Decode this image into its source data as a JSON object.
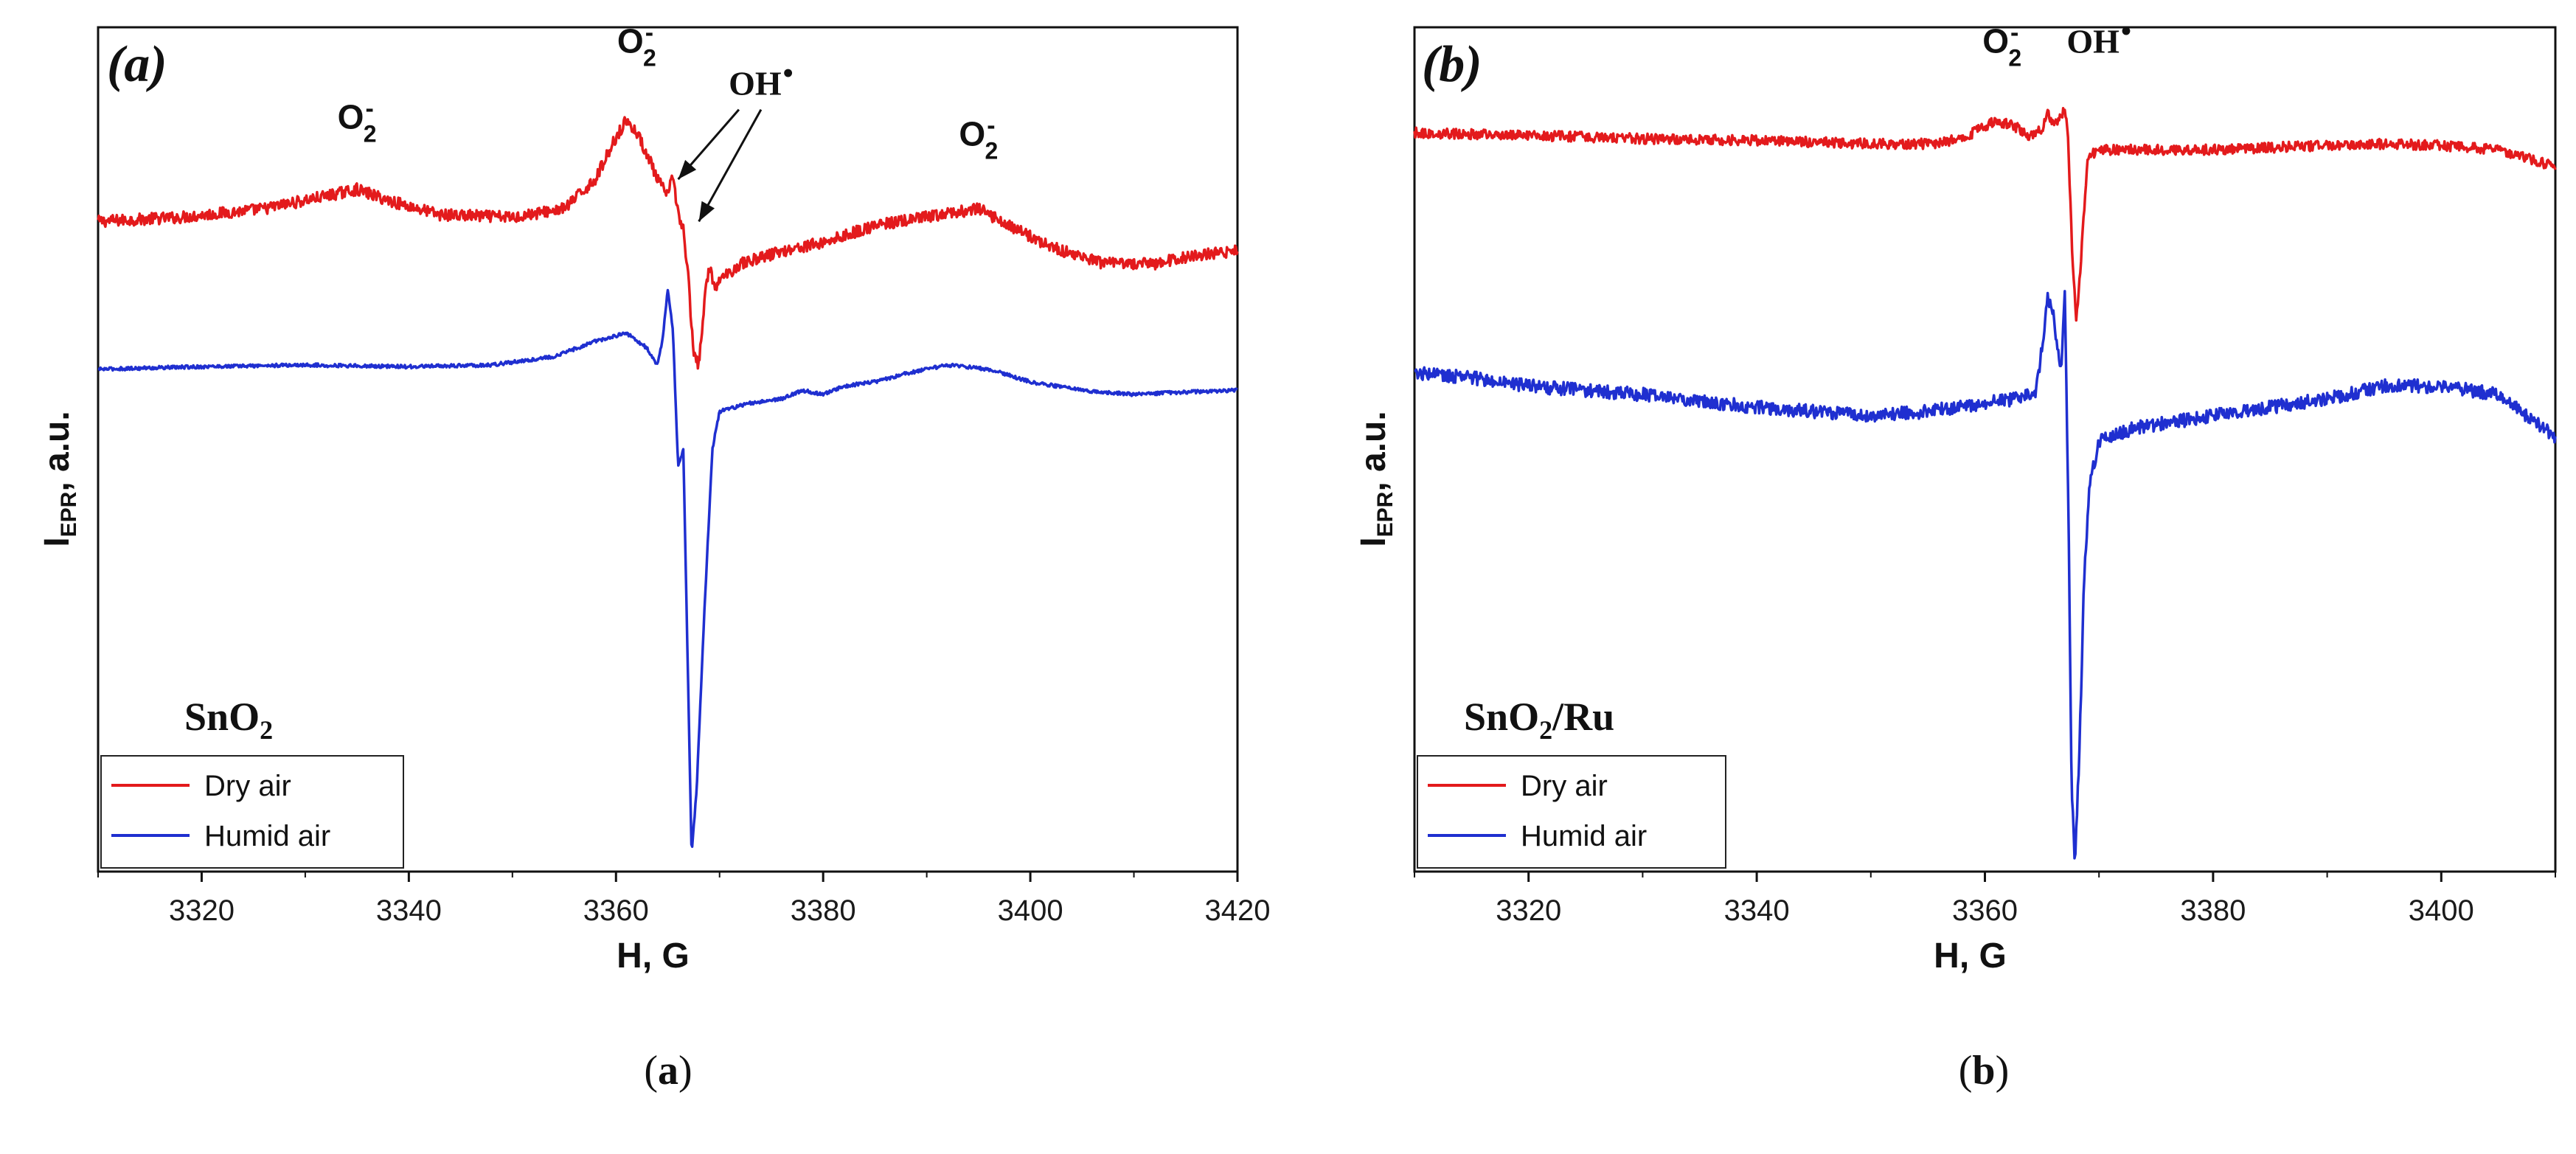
{
  "chart_data": [
    {
      "type": "line",
      "panel": "(a)",
      "caption": "a",
      "sample": "SnO2",
      "sample_parts": [
        "SnO",
        "2"
      ],
      "xlabel": "H, G",
      "ylabel": "I_EPR, a.u.",
      "ylabel_parts": [
        "I",
        "EPR",
        ", a.u."
      ],
      "xlim": [
        3310,
        3420
      ],
      "ylim": [
        0,
        1
      ],
      "xticks": [
        3320,
        3340,
        3360,
        3380,
        3400,
        3420
      ],
      "legend": [
        "Dry air",
        "Humid air"
      ],
      "legend_position": "bottom-left",
      "series": [
        {
          "name": "Dry air",
          "color": "#e31a1c",
          "noise": 0.007,
          "points": [
            [
              3310,
              0.77
            ],
            [
              3318,
              0.775
            ],
            [
              3326,
              0.785
            ],
            [
              3332,
              0.8
            ],
            [
              3335,
              0.808
            ],
            [
              3338,
              0.795
            ],
            [
              3343,
              0.778
            ],
            [
              3350,
              0.775
            ],
            [
              3355,
              0.785
            ],
            [
              3358,
              0.82
            ],
            [
              3360,
              0.87
            ],
            [
              3361,
              0.89
            ],
            [
              3362,
              0.875
            ],
            [
              3363,
              0.85
            ],
            [
              3364,
              0.82
            ],
            [
              3365,
              0.8
            ],
            [
              3365.5,
              0.825
            ],
            [
              3366,
              0.78
            ],
            [
              3366.5,
              0.76
            ],
            [
              3367,
              0.7
            ],
            [
              3367.5,
              0.61
            ],
            [
              3368,
              0.6
            ],
            [
              3368.5,
              0.67
            ],
            [
              3369,
              0.72
            ],
            [
              3369.5,
              0.69
            ],
            [
              3370,
              0.7
            ],
            [
              3372,
              0.72
            ],
            [
              3376,
              0.735
            ],
            [
              3380,
              0.745
            ],
            [
              3385,
              0.765
            ],
            [
              3390,
              0.775
            ],
            [
              3395,
              0.785
            ],
            [
              3398,
              0.765
            ],
            [
              3402,
              0.74
            ],
            [
              3407,
              0.72
            ],
            [
              3412,
              0.72
            ],
            [
              3416,
              0.73
            ],
            [
              3420,
              0.735
            ]
          ]
        },
        {
          "name": "Humid air",
          "color": "#1f2fd0",
          "noise": 0.002,
          "points": [
            [
              3310,
              0.595
            ],
            [
              3320,
              0.598
            ],
            [
              3330,
              0.6
            ],
            [
              3340,
              0.598
            ],
            [
              3348,
              0.6
            ],
            [
              3354,
              0.61
            ],
            [
              3358,
              0.628
            ],
            [
              3361,
              0.638
            ],
            [
              3363,
              0.62
            ],
            [
              3364,
              0.6
            ],
            [
              3364.5,
              0.63
            ],
            [
              3365,
              0.69
            ],
            [
              3365.5,
              0.64
            ],
            [
              3366,
              0.48
            ],
            [
              3366.5,
              0.5
            ],
            [
              3367,
              0.2
            ],
            [
              3367.3,
              0.02
            ],
            [
              3367.8,
              0.1
            ],
            [
              3368.5,
              0.3
            ],
            [
              3369.3,
              0.5
            ],
            [
              3370,
              0.545
            ],
            [
              3373,
              0.555
            ],
            [
              3376,
              0.56
            ],
            [
              3378,
              0.57
            ],
            [
              3380,
              0.565
            ],
            [
              3382,
              0.575
            ],
            [
              3385,
              0.58
            ],
            [
              3388,
              0.59
            ],
            [
              3392,
              0.6
            ],
            [
              3396,
              0.595
            ],
            [
              3400,
              0.58
            ],
            [
              3405,
              0.57
            ],
            [
              3410,
              0.565
            ],
            [
              3415,
              0.568
            ],
            [
              3420,
              0.57
            ]
          ]
        }
      ],
      "annotations": [
        {
          "main": "O",
          "sub": "2",
          "sup": "-",
          "x": 3335,
          "y": 0.88
        },
        {
          "main": "O",
          "sub": "2",
          "sup": "-",
          "x": 3362,
          "y": 0.97
        },
        {
          "main": "O",
          "sub": "2",
          "sup": "-",
          "x": 3395,
          "y": 0.86
        },
        {
          "main": "OH",
          "sup": "•",
          "x": 3374,
          "y": 0.92,
          "arrow_to": [
            [
              3366,
              0.82
            ],
            [
              3368,
              0.77
            ]
          ]
        }
      ]
    },
    {
      "type": "line",
      "panel": "(b)",
      "caption": "b",
      "sample": "SnO2/Ru",
      "sample_parts": [
        "SnO",
        "2",
        "/Ru"
      ],
      "xlabel": "H, G",
      "ylabel": "I_EPR, a.u.",
      "ylabel_parts": [
        "I",
        "EPR",
        ", a.u."
      ],
      "xlim": [
        3310,
        3410
      ],
      "ylim": [
        0,
        1
      ],
      "xticks": [
        3320,
        3340,
        3360,
        3380,
        3400
      ],
      "legend": [
        "Dry air",
        "Humid air"
      ],
      "legend_position": "bottom-left",
      "series": [
        {
          "name": "Dry air",
          "color": "#e31a1c",
          "noise": 0.006,
          "points": [
            [
              3310,
              0.875
            ],
            [
              3320,
              0.872
            ],
            [
              3330,
              0.868
            ],
            [
              3340,
              0.866
            ],
            [
              3350,
              0.862
            ],
            [
              3356,
              0.862
            ],
            [
              3359,
              0.875
            ],
            [
              3361,
              0.89
            ],
            [
              3363,
              0.88
            ],
            [
              3364,
              0.87
            ],
            [
              3365,
              0.88
            ],
            [
              3365.5,
              0.9
            ],
            [
              3366,
              0.885
            ],
            [
              3366.5,
              0.89
            ],
            [
              3367,
              0.905
            ],
            [
              3367.3,
              0.87
            ],
            [
              3367.6,
              0.75
            ],
            [
              3368,
              0.65
            ],
            [
              3368.5,
              0.74
            ],
            [
              3369,
              0.845
            ],
            [
              3370,
              0.855
            ],
            [
              3375,
              0.855
            ],
            [
              3380,
              0.855
            ],
            [
              3390,
              0.86
            ],
            [
              3395,
              0.862
            ],
            [
              3400,
              0.86
            ],
            [
              3405,
              0.855
            ],
            [
              3410,
              0.835
            ]
          ]
        },
        {
          "name": "Humid air",
          "color": "#1f2fd0",
          "noise": 0.008,
          "points": [
            [
              3310,
              0.59
            ],
            [
              3315,
              0.585
            ],
            [
              3320,
              0.575
            ],
            [
              3330,
              0.565
            ],
            [
              3340,
              0.55
            ],
            [
              3350,
              0.54
            ],
            [
              3355,
              0.545
            ],
            [
              3360,
              0.555
            ],
            [
              3363,
              0.56
            ],
            [
              3364.5,
              0.57
            ],
            [
              3365,
              0.62
            ],
            [
              3365.5,
              0.68
            ],
            [
              3366,
              0.66
            ],
            [
              3366.3,
              0.62
            ],
            [
              3366.7,
              0.6
            ],
            [
              3367,
              0.68
            ],
            [
              3367.3,
              0.45
            ],
            [
              3367.6,
              0.1
            ],
            [
              3367.9,
              0.01
            ],
            [
              3368.3,
              0.15
            ],
            [
              3368.7,
              0.35
            ],
            [
              3369.2,
              0.46
            ],
            [
              3370,
              0.51
            ],
            [
              3373,
              0.525
            ],
            [
              3380,
              0.54
            ],
            [
              3390,
              0.56
            ],
            [
              3395,
              0.575
            ],
            [
              3400,
              0.575
            ],
            [
              3405,
              0.565
            ],
            [
              3410,
              0.515
            ]
          ]
        }
      ],
      "annotations": [
        {
          "main": "O",
          "sub": "2",
          "sup": "-",
          "x": 3361.5,
          "y": 0.97
        },
        {
          "main": "OH",
          "sup": "•",
          "x": 3370,
          "y": 0.97
        }
      ]
    }
  ]
}
